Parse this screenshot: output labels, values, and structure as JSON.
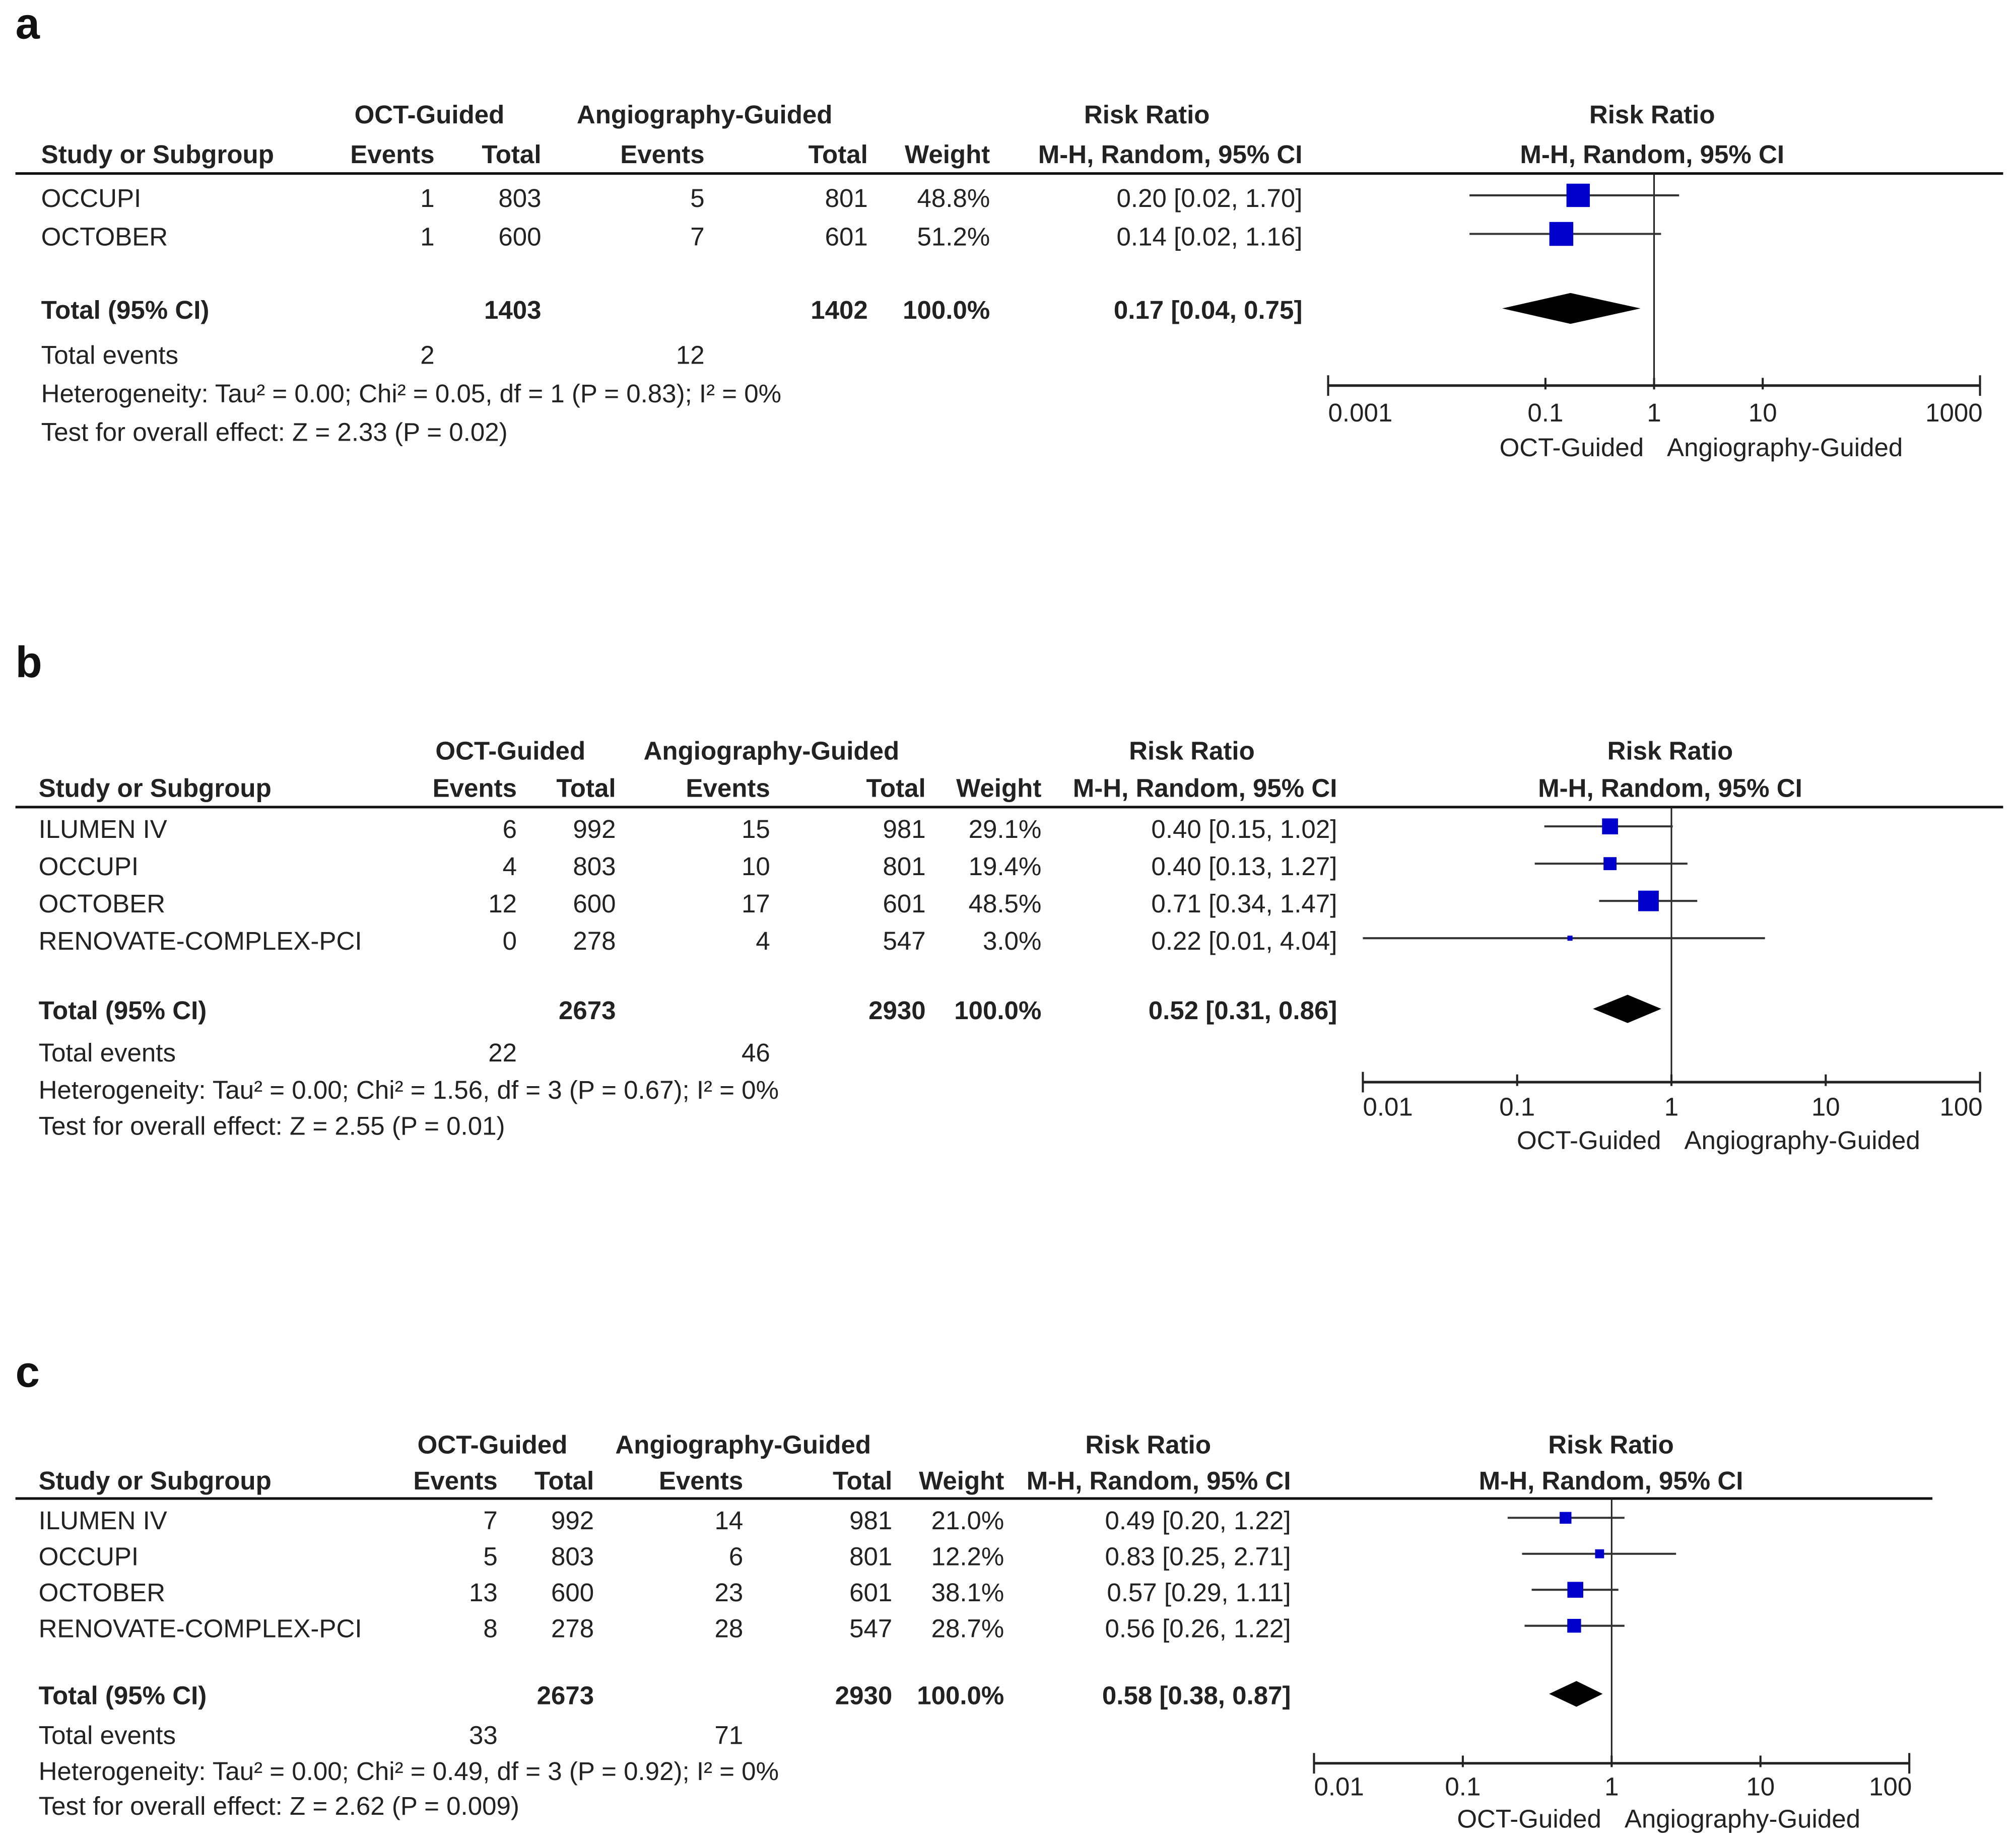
{
  "chart_data": [
    {
      "type": "forest",
      "panel_label": "a",
      "headers": {
        "group1": "OCT-Guided",
        "group2": "Angiography-Guided",
        "rr_title": "Risk Ratio",
        "study": "Study or Subgroup",
        "events": "Events",
        "total": "Total",
        "weight": "Weight",
        "rr_method": "M-H, Random, 95% CI"
      },
      "studies": [
        {
          "name": "OCCUPI",
          "g1_events": "1",
          "g1_total": "803",
          "g2_events": "5",
          "g2_total": "801",
          "weight": "48.8%",
          "rr_text": "0.20 [0.02, 1.70]",
          "rr": 0.2,
          "lo": 0.02,
          "hi": 1.7,
          "w": 48.8
        },
        {
          "name": "OCTOBER",
          "g1_events": "1",
          "g1_total": "600",
          "g2_events": "7",
          "g2_total": "601",
          "weight": "51.2%",
          "rr_text": "0.14 [0.02, 1.16]",
          "rr": 0.14,
          "lo": 0.02,
          "hi": 1.16,
          "w": 51.2
        }
      ],
      "total": {
        "label": "Total (95% CI)",
        "g1_total": "1403",
        "g2_total": "1402",
        "weight": "100.0%",
        "rr_text": "0.17 [0.04, 0.75]",
        "rr": 0.17,
        "lo": 0.04,
        "hi": 0.75
      },
      "total_events": {
        "label": "Total events",
        "g1": "2",
        "g2": "12"
      },
      "heterogeneity": "Heterogeneity: Tau² = 0.00; Chi² = 0.05, df = 1 (P = 0.83); I² = 0%",
      "overall_effect": "Test for overall effect: Z = 2.33 (P = 0.02)",
      "axis": {
        "scale": "log",
        "range": [
          0.001,
          1000
        ],
        "ticks": [
          "0.001",
          "0.1",
          "1",
          "10",
          "1000"
        ],
        "tick_values": [
          0.001,
          0.1,
          1,
          10,
          1000
        ],
        "favours_left": "OCT-Guided",
        "favours_right": "Angiography-Guided"
      },
      "colors": {
        "square": "#0000cc",
        "diamond": "#000000"
      }
    },
    {
      "type": "forest",
      "panel_label": "b",
      "headers": {
        "group1": "OCT-Guided",
        "group2": "Angiography-Guided",
        "rr_title": "Risk Ratio",
        "study": "Study or Subgroup",
        "events": "Events",
        "total": "Total",
        "weight": "Weight",
        "rr_method": "M-H, Random, 95% CI"
      },
      "studies": [
        {
          "name": "ILUMEN IV",
          "g1_events": "6",
          "g1_total": "992",
          "g2_events": "15",
          "g2_total": "981",
          "weight": "29.1%",
          "rr_text": "0.40 [0.15, 1.02]",
          "rr": 0.4,
          "lo": 0.15,
          "hi": 1.02,
          "w": 29.1
        },
        {
          "name": "OCCUPI",
          "g1_events": "4",
          "g1_total": "803",
          "g2_events": "10",
          "g2_total": "801",
          "weight": "19.4%",
          "rr_text": "0.40 [0.13, 1.27]",
          "rr": 0.4,
          "lo": 0.13,
          "hi": 1.27,
          "w": 19.4
        },
        {
          "name": "OCTOBER",
          "g1_events": "12",
          "g1_total": "600",
          "g2_events": "17",
          "g2_total": "601",
          "weight": "48.5%",
          "rr_text": "0.71 [0.34, 1.47]",
          "rr": 0.71,
          "lo": 0.34,
          "hi": 1.47,
          "w": 48.5
        },
        {
          "name": "RENOVATE-COMPLEX-PCI",
          "g1_events": "0",
          "g1_total": "278",
          "g2_events": "4",
          "g2_total": "547",
          "weight": "3.0%",
          "rr_text": "0.22 [0.01, 4.04]",
          "rr": 0.22,
          "lo": 0.01,
          "hi": 4.04,
          "w": 3.0
        }
      ],
      "total": {
        "label": "Total (95% CI)",
        "g1_total": "2673",
        "g2_total": "2930",
        "weight": "100.0%",
        "rr_text": "0.52 [0.31, 0.86]",
        "rr": 0.52,
        "lo": 0.31,
        "hi": 0.86
      },
      "total_events": {
        "label": "Total events",
        "g1": "22",
        "g2": "46"
      },
      "heterogeneity": "Heterogeneity: Tau² = 0.00; Chi² = 1.56, df = 3 (P = 0.67); I² = 0%",
      "overall_effect": "Test for overall effect: Z = 2.55 (P = 0.01)",
      "axis": {
        "scale": "log",
        "range": [
          0.01,
          100
        ],
        "ticks": [
          "0.01",
          "0.1",
          "1",
          "10",
          "100"
        ],
        "tick_values": [
          0.01,
          0.1,
          1,
          10,
          100
        ],
        "favours_left": "OCT-Guided",
        "favours_right": "Angiography-Guided"
      },
      "colors": {
        "square": "#0000cc",
        "diamond": "#000000"
      }
    },
    {
      "type": "forest",
      "panel_label": "c",
      "headers": {
        "group1": "OCT-Guided",
        "group2": "Angiography-Guided",
        "rr_title": "Risk Ratio",
        "study": "Study or Subgroup",
        "events": "Events",
        "total": "Total",
        "weight": "Weight",
        "rr_method": "M-H, Random, 95% CI"
      },
      "studies": [
        {
          "name": "ILUMEN IV",
          "g1_events": "7",
          "g1_total": "992",
          "g2_events": "14",
          "g2_total": "981",
          "weight": "21.0%",
          "rr_text": "0.49 [0.20, 1.22]",
          "rr": 0.49,
          "lo": 0.2,
          "hi": 1.22,
          "w": 21.0
        },
        {
          "name": "OCCUPI",
          "g1_events": "5",
          "g1_total": "803",
          "g2_events": "6",
          "g2_total": "801",
          "weight": "12.2%",
          "rr_text": "0.83 [0.25, 2.71]",
          "rr": 0.83,
          "lo": 0.25,
          "hi": 2.71,
          "w": 12.2
        },
        {
          "name": "OCTOBER",
          "g1_events": "13",
          "g1_total": "600",
          "g2_events": "23",
          "g2_total": "601",
          "weight": "38.1%",
          "rr_text": "0.57 [0.29, 1.11]",
          "rr": 0.57,
          "lo": 0.29,
          "hi": 1.11,
          "w": 38.1
        },
        {
          "name": "RENOVATE-COMPLEX-PCI",
          "g1_events": "8",
          "g1_total": "278",
          "g2_events": "28",
          "g2_total": "547",
          "weight": "28.7%",
          "rr_text": "0.56 [0.26, 1.22]",
          "rr": 0.56,
          "lo": 0.26,
          "hi": 1.22,
          "w": 28.7
        }
      ],
      "total": {
        "label": "Total (95% CI)",
        "g1_total": "2673",
        "g2_total": "2930",
        "weight": "100.0%",
        "rr_text": "0.58 [0.38, 0.87]",
        "rr": 0.58,
        "lo": 0.38,
        "hi": 0.87
      },
      "total_events": {
        "label": "Total events",
        "g1": "33",
        "g2": "71"
      },
      "heterogeneity": "Heterogeneity: Tau² = 0.00; Chi² = 0.49, df = 3 (P = 0.92); I² = 0%",
      "overall_effect": "Test for overall effect: Z = 2.62 (P = 0.009)",
      "axis": {
        "scale": "log",
        "range": [
          0.01,
          100
        ],
        "ticks": [
          "0.01",
          "0.1",
          "1",
          "10",
          "100"
        ],
        "tick_values": [
          0.01,
          0.1,
          1,
          10,
          100
        ],
        "favours_left": "OCT-Guided",
        "favours_right": "Angiography-Guided"
      },
      "colors": {
        "square": "#0000cc",
        "diamond": "#000000"
      }
    }
  ]
}
